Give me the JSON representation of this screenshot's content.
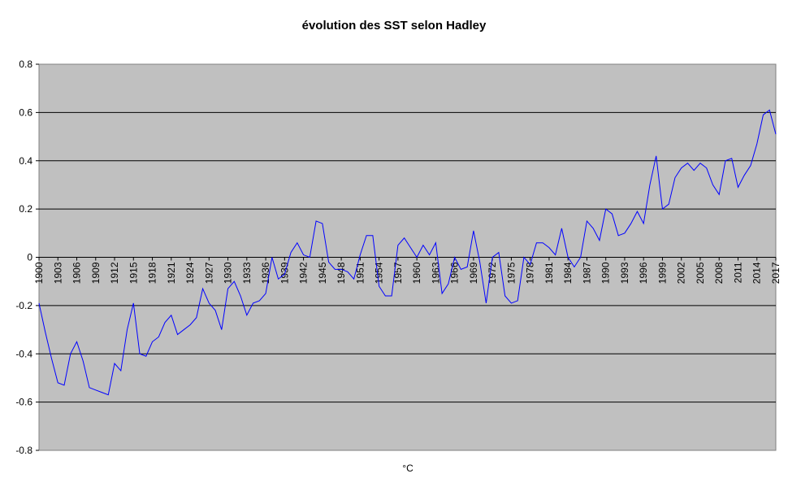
{
  "chart_data": {
    "type": "line",
    "title": "évolution des SST selon Hadley",
    "x_label": "°C",
    "x": [
      1900,
      1901,
      1902,
      1903,
      1904,
      1905,
      1906,
      1907,
      1908,
      1909,
      1910,
      1911,
      1912,
      1913,
      1914,
      1915,
      1916,
      1917,
      1918,
      1919,
      1920,
      1921,
      1922,
      1923,
      1924,
      1925,
      1926,
      1927,
      1928,
      1929,
      1930,
      1931,
      1932,
      1933,
      1934,
      1935,
      1936,
      1937,
      1938,
      1939,
      1940,
      1941,
      1942,
      1943,
      1944,
      1945,
      1946,
      1947,
      1948,
      1949,
      1950,
      1951,
      1952,
      1953,
      1954,
      1955,
      1956,
      1957,
      1958,
      1959,
      1960,
      1961,
      1962,
      1963,
      1964,
      1965,
      1966,
      1967,
      1968,
      1969,
      1970,
      1971,
      1972,
      1973,
      1974,
      1975,
      1976,
      1977,
      1978,
      1979,
      1980,
      1981,
      1982,
      1983,
      1984,
      1985,
      1986,
      1987,
      1988,
      1989,
      1990,
      1991,
      1992,
      1993,
      1994,
      1995,
      1996,
      1997,
      1998,
      1999,
      2000,
      2001,
      2002,
      2003,
      2004,
      2005,
      2006,
      2007,
      2008,
      2009,
      2010,
      2011,
      2012,
      2013,
      2014,
      2015,
      2016,
      2017
    ],
    "series": [
      {
        "name": "SST",
        "color": "#0000ff",
        "values": [
          -0.19,
          -0.31,
          -0.42,
          -0.52,
          -0.53,
          -0.4,
          -0.35,
          -0.43,
          -0.54,
          -0.55,
          -0.56,
          -0.57,
          -0.44,
          -0.47,
          -0.3,
          -0.19,
          -0.4,
          -0.41,
          -0.35,
          -0.33,
          -0.27,
          -0.24,
          -0.32,
          -0.3,
          -0.28,
          -0.25,
          -0.13,
          -0.19,
          -0.22,
          -0.3,
          -0.13,
          -0.1,
          -0.16,
          -0.24,
          -0.19,
          -0.18,
          -0.15,
          0.0,
          -0.09,
          -0.07,
          0.02,
          0.06,
          0.01,
          0.0,
          0.15,
          0.14,
          -0.02,
          -0.05,
          -0.05,
          -0.06,
          -0.09,
          0.01,
          0.09,
          0.09,
          -0.12,
          -0.16,
          -0.16,
          0.05,
          0.08,
          0.04,
          0.0,
          0.05,
          0.01,
          0.06,
          -0.15,
          -0.11,
          0.0,
          -0.05,
          -0.04,
          0.11,
          -0.02,
          -0.19,
          0.0,
          0.02,
          -0.16,
          -0.19,
          -0.18,
          0.0,
          -0.03,
          0.06,
          0.06,
          0.04,
          0.01,
          0.12,
          0.0,
          -0.04,
          0.0,
          0.15,
          0.12,
          0.07,
          0.2,
          0.18,
          0.09,
          0.1,
          0.14,
          0.19,
          0.14,
          0.3,
          0.42,
          0.2,
          0.22,
          0.33,
          0.37,
          0.39,
          0.36,
          0.39,
          0.37,
          0.3,
          0.26,
          0.4,
          0.41,
          0.29,
          0.34,
          0.38,
          0.47,
          0.59,
          0.61,
          0.51
        ]
      }
    ],
    "xlim": [
      1900,
      2017
    ],
    "xticks": [
      1900,
      1903,
      1906,
      1909,
      1912,
      1915,
      1918,
      1921,
      1924,
      1927,
      1930,
      1933,
      1936,
      1939,
      1942,
      1945,
      1948,
      1951,
      1954,
      1957,
      1960,
      1963,
      1966,
      1969,
      1972,
      1975,
      1978,
      1981,
      1984,
      1987,
      1990,
      1993,
      1996,
      1999,
      2002,
      2005,
      2008,
      2011,
      2014,
      2017
    ],
    "ylim": [
      -0.8,
      0.8
    ],
    "yticks": [
      -0.8,
      -0.6,
      -0.4,
      -0.2,
      0,
      0.2,
      0.4,
      0.6,
      0.8
    ],
    "grid": true
  }
}
